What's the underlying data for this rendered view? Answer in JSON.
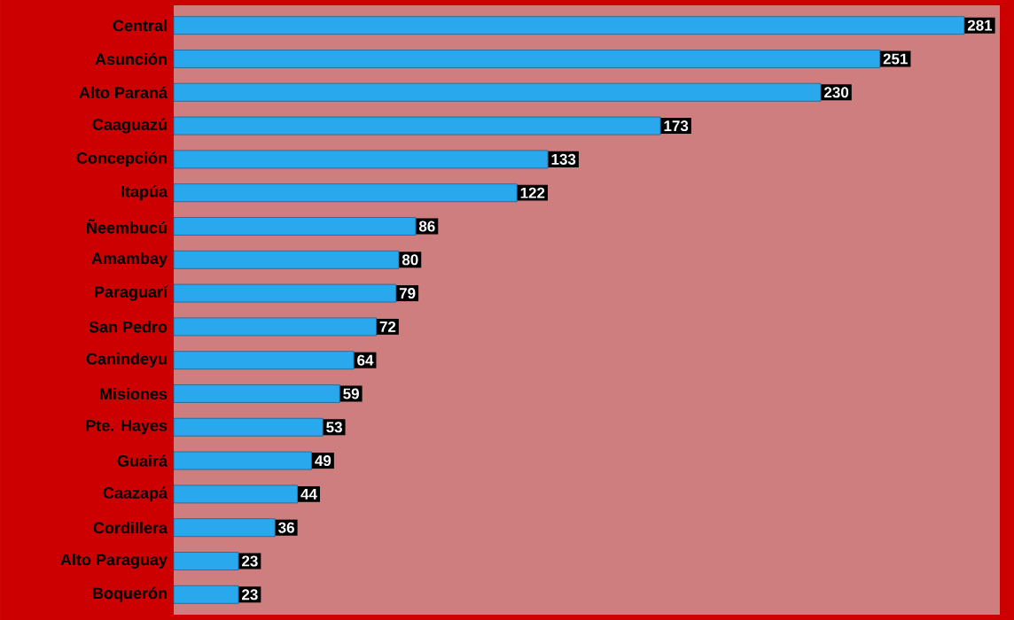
{
  "chart_data": {
    "type": "bar",
    "orientation": "horizontal",
    "data_labels": true,
    "color": "#2aa8ee",
    "categories": [
      "Central",
      "Asunción",
      "Alto Paraná",
      "Caaguazú",
      "Concepción",
      "Itapúa",
      "Ñeembucú",
      "Amambay",
      "Paraguarí",
      "San Pedro",
      "Canindeyu",
      "Misiones",
      "Pte. Hayes",
      "Guairá",
      "Caazapá",
      "Cordillera",
      "Alto Paraguay",
      "Boquerón"
    ],
    "values": [
      281,
      251,
      230,
      173,
      133,
      122,
      86,
      80,
      79,
      72,
      64,
      59,
      53,
      49,
      44,
      36,
      23,
      23
    ]
  }
}
